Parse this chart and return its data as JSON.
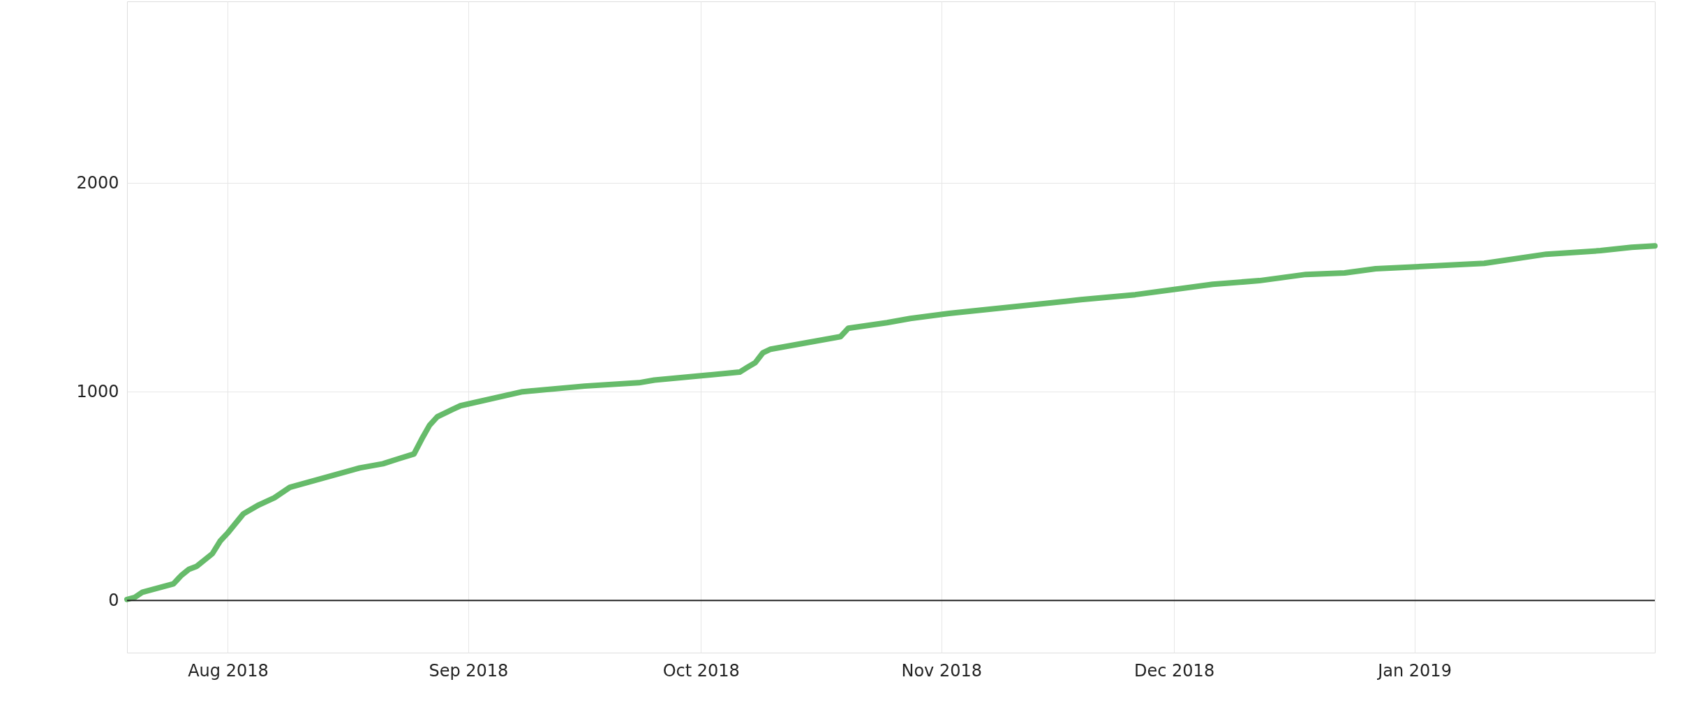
{
  "chart_data": {
    "type": "line",
    "x": [
      "2018-07-19",
      "2018-07-20",
      "2018-07-21",
      "2018-07-25",
      "2018-07-26",
      "2018-07-27",
      "2018-07-28",
      "2018-07-30",
      "2018-07-31",
      "2018-08-01",
      "2018-08-03",
      "2018-08-05",
      "2018-08-07",
      "2018-08-09",
      "2018-08-18",
      "2018-08-21",
      "2018-08-23",
      "2018-08-25",
      "2018-08-26",
      "2018-08-27",
      "2018-08-28",
      "2018-08-30",
      "2018-08-31",
      "2018-09-08",
      "2018-09-16",
      "2018-09-23",
      "2018-09-25",
      "2018-10-02",
      "2018-10-06",
      "2018-10-07",
      "2018-10-08",
      "2018-10-09",
      "2018-10-10",
      "2018-10-19",
      "2018-10-20",
      "2018-10-25",
      "2018-10-28",
      "2018-11-02",
      "2018-11-19",
      "2018-11-26",
      "2018-12-06",
      "2018-12-12",
      "2018-12-18",
      "2018-12-23",
      "2018-12-27",
      "2019-01-10",
      "2019-01-18",
      "2019-01-25",
      "2019-01-29",
      "2019-02-01"
    ],
    "series": [
      {
        "color": "#66bb6a",
        "values": [
          5,
          15,
          40,
          80,
          120,
          150,
          164,
          224,
          284,
          324,
          415,
          458,
          492,
          542,
          635,
          655,
          679,
          702,
          773,
          839,
          880,
          916,
          933,
          1000,
          1027,
          1043,
          1056,
          1080,
          1094,
          1117,
          1139,
          1187,
          1204,
          1264,
          1304,
          1331,
          1351,
          1375,
          1441,
          1465,
          1515,
          1532,
          1562,
          1569,
          1589,
          1615,
          1659,
          1676,
          1692,
          1699
        ]
      }
    ],
    "xlim": [
      "2018-07-19",
      "2019-02-01"
    ],
    "xticks": [
      {
        "value": "2018-08-01",
        "label": "Aug 2018"
      },
      {
        "value": "2018-09-01",
        "label": "Sep 2018"
      },
      {
        "value": "2018-10-01",
        "label": "Oct 2018"
      },
      {
        "value": "2018-11-01",
        "label": "Nov 2018"
      },
      {
        "value": "2018-12-01",
        "label": "Dec 2018"
      },
      {
        "value": "2019-01-01",
        "label": "Jan 2019"
      }
    ],
    "ylim": [
      -250,
      2870
    ],
    "yticks": [
      0,
      1000,
      2000
    ],
    "ref_lines": [
      {
        "axis": "y",
        "value": 0,
        "color": "#222222"
      }
    ],
    "grid": true,
    "line_style": "solid"
  }
}
